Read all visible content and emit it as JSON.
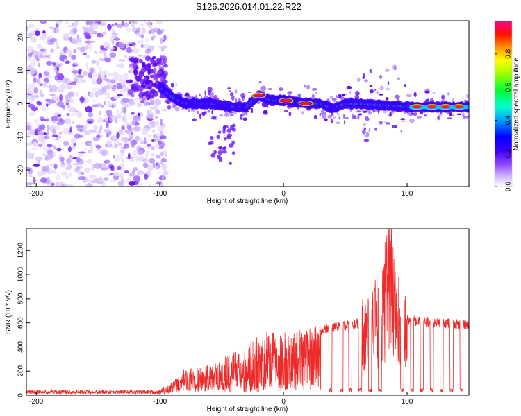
{
  "title": "S126.2026.014.01.22.R22",
  "chart_data": [
    {
      "type": "heatmap",
      "name": "spectrogram",
      "xlabel": "Height of straight line (km)",
      "ylabel": "Frequency (Hz)",
      "xlim": [
        -208,
        150
      ],
      "ylim": [
        -25,
        25
      ],
      "xticks": [
        -200,
        -100,
        0,
        100
      ],
      "yticks": [
        -20,
        -10,
        0,
        10,
        20
      ],
      "colorbar": {
        "label": "Normalized spectral amplitude",
        "range": [
          0.0,
          1.0
        ],
        "ticks": [
          "0.0",
          "0.2",
          "0.4",
          "0.6",
          "0.8"
        ],
        "tick_values": [
          0.0,
          0.2,
          0.4,
          0.6,
          0.8
        ],
        "colors": [
          "#ffffff",
          "#b48cff",
          "#6a00ff",
          "#0000ff",
          "#00c8ff",
          "#00ff80",
          "#c8ff00",
          "#ff8000",
          "#ff0000",
          "#ff00a0"
        ]
      },
      "ridge": [
        {
          "x": -100,
          "f": 5
        },
        {
          "x": -90,
          "f": 2
        },
        {
          "x": -80,
          "f": 0
        },
        {
          "x": -60,
          "f": 0
        },
        {
          "x": -40,
          "f": -1
        },
        {
          "x": -30,
          "f": -1
        },
        {
          "x": -20,
          "f": 2.5
        },
        {
          "x": -10,
          "f": 1
        },
        {
          "x": 0,
          "f": 1
        },
        {
          "x": 10,
          "f": 0.5
        },
        {
          "x": 20,
          "f": 0
        },
        {
          "x": 30,
          "f": 0
        },
        {
          "x": 40,
          "f": -1.5
        },
        {
          "x": 50,
          "f": 0
        },
        {
          "x": 60,
          "f": 0
        },
        {
          "x": 80,
          "f": -0.5
        },
        {
          "x": 100,
          "f": -1
        },
        {
          "x": 120,
          "f": -1
        },
        {
          "x": 150,
          "f": -1
        }
      ],
      "noise_floor_region": [
        -208,
        -95
      ]
    },
    {
      "type": "line",
      "name": "snr",
      "xlabel": "Height of straight line (km)",
      "ylabel": "SNR (10 * v/v)",
      "xlim": [
        -208,
        150
      ],
      "ylim": [
        0,
        1380
      ],
      "xticks": [
        -200,
        -100,
        0,
        100
      ],
      "yticks": [
        0,
        200,
        400,
        600,
        800,
        1000,
        1200
      ],
      "color": "#ee2a2a",
      "envelope": [
        {
          "x": -208,
          "y": 30
        },
        {
          "x": -100,
          "y": 30
        },
        {
          "x": -90,
          "y": 100
        },
        {
          "x": -80,
          "y": 200
        },
        {
          "x": -60,
          "y": 230
        },
        {
          "x": -30,
          "y": 380
        },
        {
          "x": -20,
          "y": 480
        },
        {
          "x": 0,
          "y": 470
        },
        {
          "x": 20,
          "y": 520
        },
        {
          "x": 40,
          "y": 580
        },
        {
          "x": 60,
          "y": 610
        },
        {
          "x": 70,
          "y": 680
        },
        {
          "x": 80,
          "y": 820
        },
        {
          "x": 85,
          "y": 1350
        },
        {
          "x": 90,
          "y": 900
        },
        {
          "x": 100,
          "y": 640
        },
        {
          "x": 120,
          "y": 620
        },
        {
          "x": 150,
          "y": 600
        }
      ],
      "dropout_x": [
        28,
        38,
        47,
        54,
        62,
        70,
        78,
        96,
        104,
        112,
        120,
        128,
        136,
        144
      ]
    }
  ]
}
